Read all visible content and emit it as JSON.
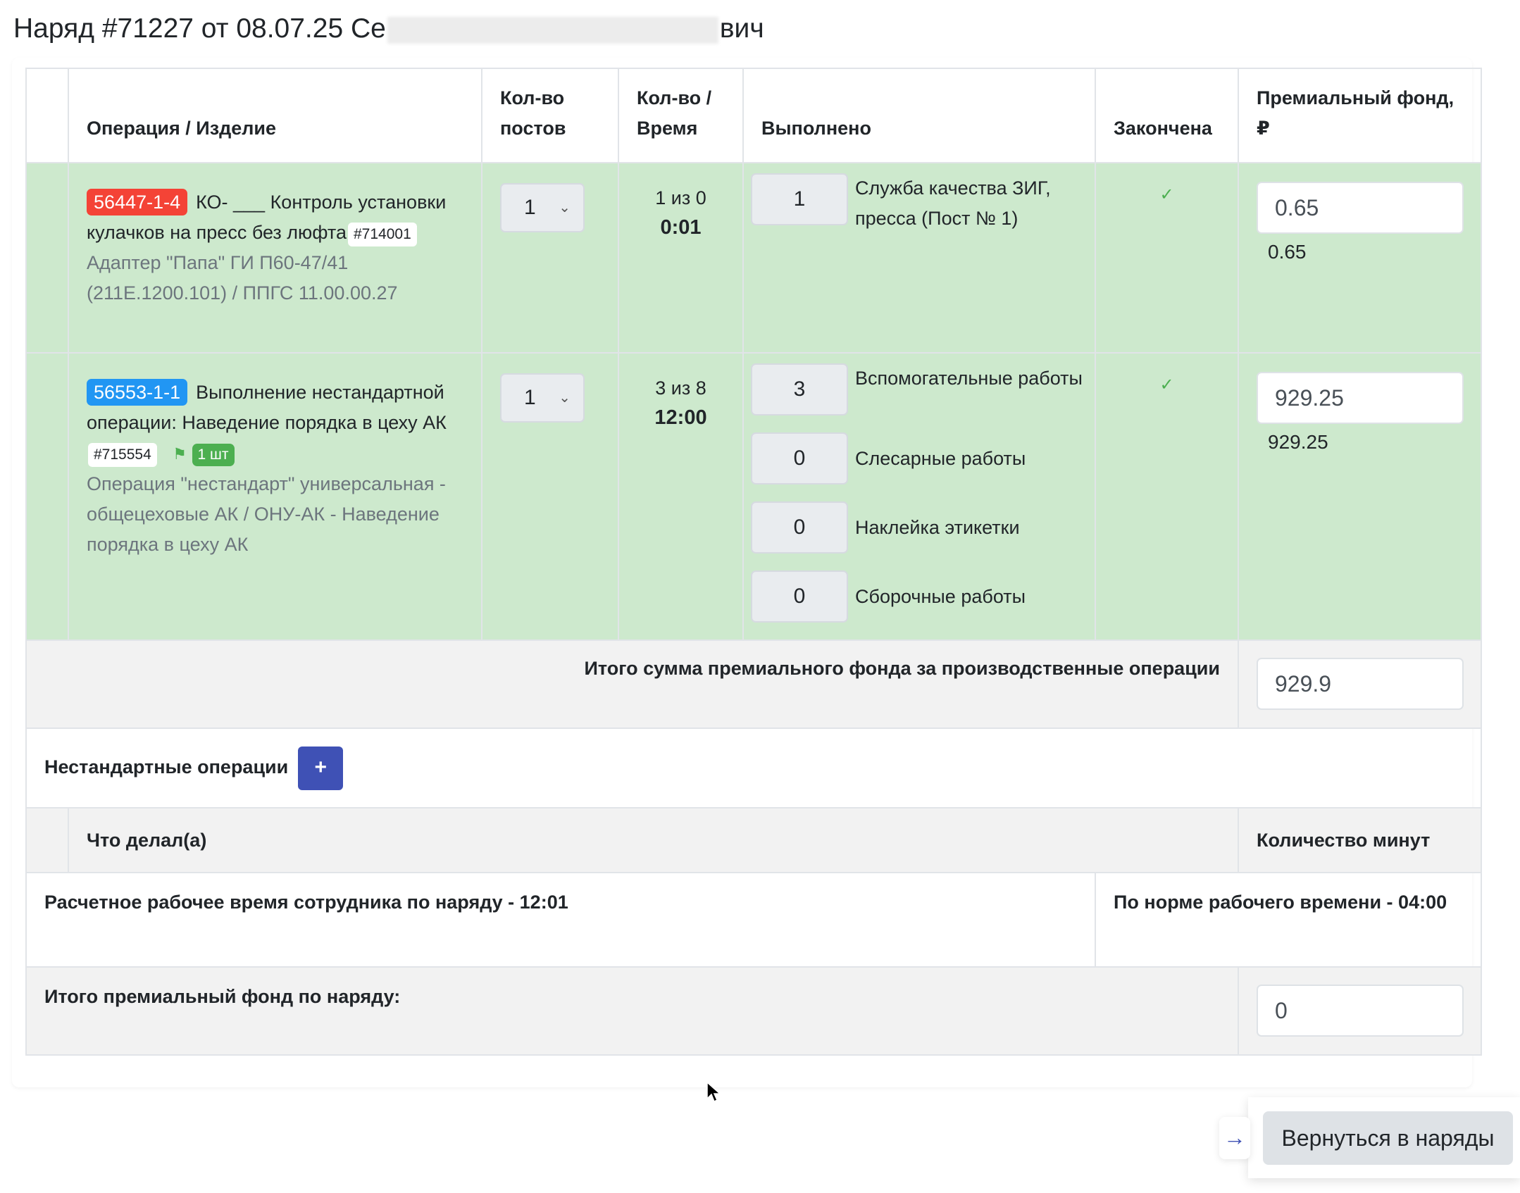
{
  "page_title": {
    "prefix": "Наряд #71227 от 08.07.25 Се",
    "suffix": "вич"
  },
  "table": {
    "headers": [
      "",
      "Операция / Изделие",
      "Кол-во постов",
      "Кол-во / Время",
      "Выполнено",
      "Закончена",
      "Премиальный фонд, ₽"
    ],
    "rows": [
      {
        "badge": "56447-1-4",
        "badge_color": "#f44336",
        "name": "КО- ___ Контроль установки кулачков на пресс без люфта",
        "code": "#714001",
        "product": "Адаптер \"Папа\" ГИ П60-47/41 (211Е.1200.101) / ППГС 11.00.00.27",
        "posts": "1",
        "qty": "1 из 0",
        "time": "0:01",
        "done": [
          {
            "value": "1",
            "label": "Служба качества ЗИГ, пресса (Пост № 1)"
          }
        ],
        "finished": true,
        "fund_input": "0.65",
        "fund_value": "0.65"
      },
      {
        "badge": "56553-1-1",
        "badge_color": "#2196f3",
        "name": "Выполнение нестандартной операции: Наведение порядка в цеху АК",
        "code": "#715554",
        "flag_icon": "flag-icon",
        "pieces": "1 шт",
        "product": "Операция \"нестандарт\" универсальная - общецеховые АК / ОНУ-АК - Наведение порядка в цеху АК",
        "posts": "1",
        "qty": "3 из 8",
        "time": "12:00",
        "done": [
          {
            "value": "3",
            "label": "Вспомогательные работы"
          },
          {
            "value": "0",
            "label": "Слесарные работы"
          },
          {
            "value": "0",
            "label": "Наклейка этикетки"
          },
          {
            "value": "0",
            "label": "Сборочные работы"
          }
        ],
        "finished": true,
        "fund_input": "929.25",
        "fund_value": "929.25"
      }
    ],
    "total_label": "Итого сумма премиального фонда за производственные операции",
    "total_value": "929.9"
  },
  "nonstandard": {
    "label": "Нестандартные операции",
    "add_label": "+",
    "headers": [
      "Что делал(а)",
      "Количество минут"
    ]
  },
  "calc_time": "Расчетное рабочее время сотрудника по наряду - 12:01",
  "norm_time": "По норме рабочего времени - 04:00",
  "grand_total_label": "Итого премиальный фонд по наряду:",
  "grand_total_value": "0",
  "back_button": "Вернуться в наряды",
  "accent": "#3f51b5"
}
